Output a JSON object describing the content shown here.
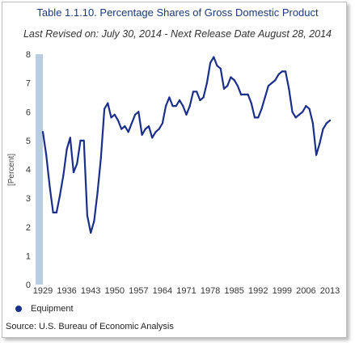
{
  "chart_data": {
    "type": "line",
    "title": "Table 1.1.10. Percentage Shares of Gross Domestic Product",
    "subtitle": "Last Revised on: July 30, 2014 - Next Release Date August 28, 2014",
    "ylabel": "[Percent]",
    "xlabel": "",
    "ylim": [
      0,
      8
    ],
    "xlim": [
      1929,
      2013
    ],
    "yticks": [
      0,
      1,
      2,
      3,
      4,
      5,
      6,
      7,
      8
    ],
    "xticks": [
      "1929",
      "1936",
      "1943",
      "1950",
      "1957",
      "1964",
      "1971",
      "1978",
      "1985",
      "1992",
      "1999",
      "2006",
      "2013"
    ],
    "grid": false,
    "legend_position": "bottom-left",
    "series": [
      {
        "name": "Equipment",
        "color": "#1a2f8a",
        "x": [
          1929,
          1930,
          1931,
          1932,
          1933,
          1934,
          1935,
          1936,
          1937,
          1938,
          1939,
          1940,
          1941,
          1942,
          1943,
          1944,
          1945,
          1946,
          1947,
          1948,
          1949,
          1950,
          1951,
          1952,
          1953,
          1954,
          1955,
          1956,
          1957,
          1958,
          1959,
          1960,
          1961,
          1962,
          1963,
          1964,
          1965,
          1966,
          1967,
          1968,
          1969,
          1970,
          1971,
          1972,
          1973,
          1974,
          1975,
          1976,
          1977,
          1978,
          1979,
          1980,
          1981,
          1982,
          1983,
          1984,
          1985,
          1986,
          1987,
          1988,
          1989,
          1990,
          1991,
          1992,
          1993,
          1994,
          1995,
          1996,
          1997,
          1998,
          1999,
          2000,
          2001,
          2002,
          2003,
          2004,
          2005,
          2006,
          2007,
          2008,
          2009,
          2010,
          2011,
          2012,
          2013
        ],
        "values": [
          5.3,
          4.5,
          3.4,
          2.5,
          2.5,
          3.1,
          3.8,
          4.7,
          5.1,
          3.9,
          4.2,
          5.0,
          5.0,
          2.4,
          1.8,
          2.2,
          3.2,
          4.4,
          6.1,
          6.3,
          5.8,
          5.9,
          5.7,
          5.4,
          5.5,
          5.3,
          5.6,
          5.9,
          6.0,
          5.2,
          5.4,
          5.5,
          5.1,
          5.3,
          5.4,
          5.6,
          6.2,
          6.5,
          6.2,
          6.2,
          6.4,
          6.2,
          5.9,
          6.2,
          6.7,
          6.7,
          6.4,
          6.5,
          7.0,
          7.7,
          7.9,
          7.6,
          7.5,
          6.8,
          6.9,
          7.2,
          7.1,
          6.9,
          6.6,
          6.6,
          6.6,
          6.3,
          5.8,
          5.8,
          6.1,
          6.5,
          6.9,
          7.0,
          7.1,
          7.3,
          7.4,
          7.4,
          6.8,
          6.0,
          5.8,
          5.9,
          6.0,
          6.2,
          6.1,
          5.6,
          4.5,
          4.9,
          5.4,
          5.6,
          5.7
        ]
      }
    ]
  },
  "source": "Source: U.S. Bureau of Economic Analysis"
}
